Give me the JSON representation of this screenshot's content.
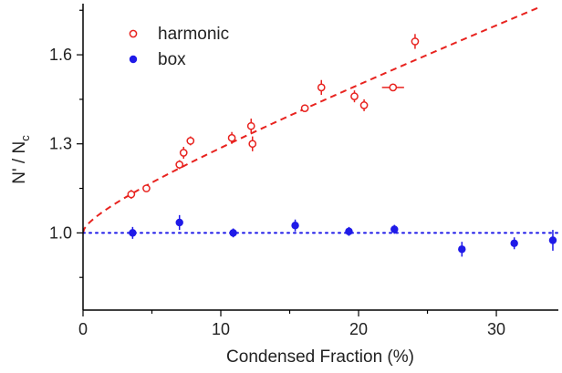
{
  "chart_data": {
    "type": "scatter",
    "xlabel": "Condensed Fraction (%)",
    "ylabel_main": "N' / N",
    "ylabel_sub": "c",
    "xlim": [
      0,
      34.5
    ],
    "ylim": [
      0.74,
      1.76
    ],
    "x_ticks": [
      {
        "value": 0,
        "label": "0"
      },
      {
        "value": 10,
        "label": "10"
      },
      {
        "value": 20,
        "label": "20"
      },
      {
        "value": 30,
        "label": "30"
      }
    ],
    "y_ticks": [
      {
        "value": 1.0,
        "label": "1.0"
      },
      {
        "value": 1.3,
        "label": "1.3"
      },
      {
        "value": 1.6,
        "label": "1.6"
      }
    ],
    "legend_position": "top-left",
    "series": [
      {
        "name": "harmonic",
        "color": "#e8231f",
        "marker": "open-circle",
        "points": [
          {
            "x": 3.5,
            "y": 1.13,
            "yerr": 0.015,
            "xerr": 0
          },
          {
            "x": 4.6,
            "y": 1.15,
            "yerr": 0.01,
            "xerr": 0
          },
          {
            "x": 7.0,
            "y": 1.23,
            "yerr": 0.015,
            "xerr": 0
          },
          {
            "x": 7.3,
            "y": 1.27,
            "yerr": 0.02,
            "xerr": 0
          },
          {
            "x": 7.8,
            "y": 1.31,
            "yerr": 0.015,
            "xerr": 0
          },
          {
            "x": 10.8,
            "y": 1.32,
            "yerr": 0.02,
            "xerr": 0
          },
          {
            "x": 12.2,
            "y": 1.36,
            "yerr": 0.025,
            "xerr": 0
          },
          {
            "x": 12.3,
            "y": 1.3,
            "yerr": 0.025,
            "xerr": 0
          },
          {
            "x": 16.1,
            "y": 1.42,
            "yerr": 0.01,
            "xerr": 0
          },
          {
            "x": 17.3,
            "y": 1.49,
            "yerr": 0.025,
            "xerr": 0
          },
          {
            "x": 19.7,
            "y": 1.46,
            "yerr": 0.02,
            "xerr": 0
          },
          {
            "x": 20.4,
            "y": 1.43,
            "yerr": 0.02,
            "xerr": 0
          },
          {
            "x": 22.5,
            "y": 1.49,
            "yerr": 0,
            "xerr": 0.8
          },
          {
            "x": 24.1,
            "y": 1.645,
            "yerr": 0.025,
            "xerr": 0
          }
        ]
      },
      {
        "name": "box",
        "color": "#1f1ae8",
        "marker": "filled-circle",
        "points": [
          {
            "x": 3.6,
            "y": 1.0,
            "yerr": 0.02,
            "xerr": 0
          },
          {
            "x": 7.0,
            "y": 1.035,
            "yerr": 0.025,
            "xerr": 0
          },
          {
            "x": 10.9,
            "y": 1.0,
            "yerr": 0.015,
            "xerr": 0
          },
          {
            "x": 15.4,
            "y": 1.025,
            "yerr": 0.02,
            "xerr": 0
          },
          {
            "x": 19.3,
            "y": 1.005,
            "yerr": 0.015,
            "xerr": 0
          },
          {
            "x": 22.6,
            "y": 1.012,
            "yerr": 0.015,
            "xerr": 0
          },
          {
            "x": 27.5,
            "y": 0.945,
            "yerr": 0.025,
            "xerr": 0
          },
          {
            "x": 31.3,
            "y": 0.965,
            "yerr": 0.02,
            "xerr": 0
          },
          {
            "x": 34.1,
            "y": 0.975,
            "yerr": 0.035,
            "xerr": 0
          }
        ]
      }
    ],
    "reference_lines": [
      {
        "name": "harmonic-fit",
        "style": "dashed",
        "color": "#e8231f",
        "fit_form": "y = 1 + 0.04*x^0.5 + 0.016*x"
      },
      {
        "name": "box-reference",
        "style": "dotted",
        "color": "#1f1ae8",
        "y": 1.0
      }
    ]
  }
}
